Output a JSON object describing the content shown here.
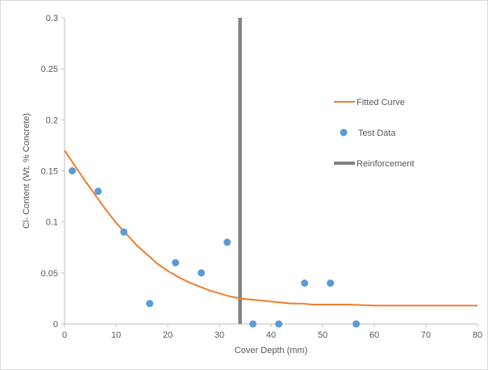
{
  "chart_data": {
    "type": "scatter",
    "xlabel": "Cover Depth (mm)",
    "ylabel": "Cl- Content (Wt. % Concrete)",
    "xlim": [
      0,
      80
    ],
    "ylim": [
      0,
      0.3
    ],
    "x_ticks": [
      "0",
      "10",
      "20",
      "30",
      "40",
      "50",
      "60",
      "70",
      "80"
    ],
    "y_ticks": [
      "0",
      "0.05",
      "0.1",
      "0.15",
      "0.2",
      "0.25",
      "0.3"
    ],
    "grid": "none",
    "legend_position": "right",
    "series": [
      {
        "name": "Fitted Curve",
        "kind": "line",
        "color": "#ed7d31",
        "x": [
          0,
          2,
          4,
          6,
          8,
          10,
          12,
          14,
          16,
          18,
          20,
          22,
          24,
          26,
          28,
          30,
          32,
          34,
          36,
          38,
          40,
          42,
          44,
          46,
          48,
          50,
          55,
          60,
          65,
          70,
          75,
          80
        ],
        "y": [
          0.17,
          0.155,
          0.14,
          0.126,
          0.112,
          0.099,
          0.088,
          0.077,
          0.068,
          0.059,
          0.052,
          0.046,
          0.041,
          0.037,
          0.033,
          0.03,
          0.027,
          0.025,
          0.024,
          0.023,
          0.022,
          0.021,
          0.02,
          0.02,
          0.019,
          0.019,
          0.019,
          0.018,
          0.018,
          0.018,
          0.018,
          0.018
        ]
      },
      {
        "name": "Test Data",
        "kind": "scatter",
        "color": "#5b9bd5",
        "x": [
          1.5,
          6.5,
          11.5,
          16.5,
          21.5,
          26.5,
          31.5,
          36.5,
          41.5,
          46.5,
          51.5,
          56.5
        ],
        "y": [
          0.15,
          0.13,
          0.09,
          0.02,
          0.06,
          0.05,
          0.08,
          0,
          0,
          0.04,
          0.04,
          0
        ]
      },
      {
        "name": "Reinforcement",
        "kind": "vline",
        "color": "#808080",
        "x": [
          34,
          34
        ],
        "y": [
          0,
          0.3
        ]
      }
    ]
  }
}
